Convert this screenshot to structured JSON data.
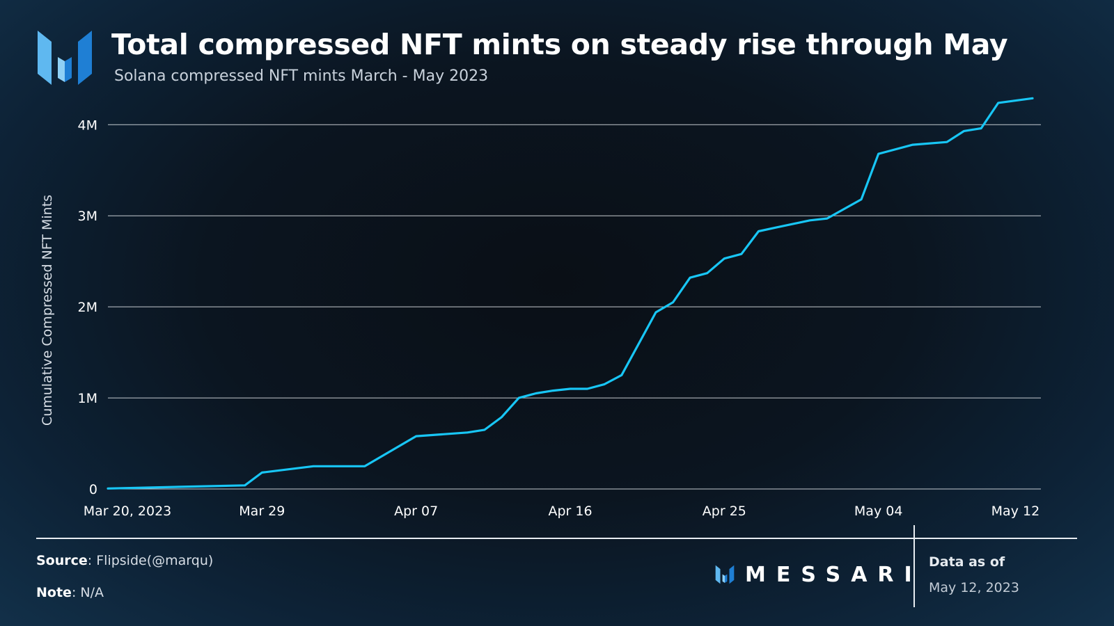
{
  "header": {
    "title": "Total compressed NFT mints on steady rise through May",
    "subtitle": "Solana compressed NFT mints March - May 2023"
  },
  "colors": {
    "line": "#18c6f5",
    "gridline": "#e6eaee",
    "logo_light": "#5fb8f0",
    "logo_dark": "#1f7fd4"
  },
  "icons": {
    "brand_logo": "messari-logo-icon"
  },
  "chart_data": {
    "type": "line",
    "title": "Total compressed NFT mints on steady rise through May",
    "subtitle": "Solana compressed NFT mints March - May 2023",
    "xlabel": "",
    "ylabel": "Cumulative Compressed NFT Mints",
    "ylim": [
      0,
      4300000
    ],
    "xlim": [
      "2023-03-20",
      "2023-05-13"
    ],
    "grid": true,
    "x_ticks": [
      {
        "date": "2023-03-20",
        "label": "Mar 20, 2023"
      },
      {
        "date": "2023-03-29",
        "label": "Mar 29"
      },
      {
        "date": "2023-04-07",
        "label": "Apr 07"
      },
      {
        "date": "2023-04-16",
        "label": "Apr 16"
      },
      {
        "date": "2023-04-25",
        "label": "Apr 25"
      },
      {
        "date": "2023-05-04",
        "label": "May 04"
      },
      {
        "date": "2023-05-12",
        "label": "May 12"
      }
    ],
    "y_ticks": [
      {
        "value": 0,
        "label": "0"
      },
      {
        "value": 1000000,
        "label": "1M"
      },
      {
        "value": 2000000,
        "label": "2M"
      },
      {
        "value": 3000000,
        "label": "3M"
      },
      {
        "value": 4000000,
        "label": "4M"
      }
    ],
    "series": [
      {
        "points": [
          [
            "2023-03-20",
            5000
          ],
          [
            "2023-03-28",
            40000
          ],
          [
            "2023-03-29",
            180000
          ],
          [
            "2023-04-01",
            250000
          ],
          [
            "2023-04-04",
            250000
          ],
          [
            "2023-04-07",
            580000
          ],
          [
            "2023-04-10",
            620000
          ],
          [
            "2023-04-11",
            650000
          ],
          [
            "2023-04-12",
            790000
          ],
          [
            "2023-04-13",
            1000000
          ],
          [
            "2023-04-14",
            1050000
          ],
          [
            "2023-04-15",
            1080000
          ],
          [
            "2023-04-16",
            1100000
          ],
          [
            "2023-04-17",
            1100000
          ],
          [
            "2023-04-18",
            1150000
          ],
          [
            "2023-04-19",
            1250000
          ],
          [
            "2023-04-21",
            1940000
          ],
          [
            "2023-04-22",
            2050000
          ],
          [
            "2023-04-23",
            2320000
          ],
          [
            "2023-04-24",
            2370000
          ],
          [
            "2023-04-25",
            2530000
          ],
          [
            "2023-04-26",
            2580000
          ],
          [
            "2023-04-27",
            2830000
          ],
          [
            "2023-04-28",
            2870000
          ],
          [
            "2023-04-30",
            2950000
          ],
          [
            "2023-05-01",
            2970000
          ],
          [
            "2023-05-03",
            3180000
          ],
          [
            "2023-05-04",
            3680000
          ],
          [
            "2023-05-06",
            3780000
          ],
          [
            "2023-05-08",
            3810000
          ],
          [
            "2023-05-09",
            3930000
          ],
          [
            "2023-05-10",
            3960000
          ],
          [
            "2023-05-11",
            4240000
          ],
          [
            "2023-05-13",
            4290000
          ]
        ]
      }
    ]
  },
  "footer": {
    "source_label": "Source",
    "source_value": ": Flipside(@marqu)",
    "note_label": "Note",
    "note_value": ": N/A",
    "brand_name": "MESSARI",
    "data_as_of_label": "Data as of",
    "data_as_of_date": "May 12, 2023"
  }
}
